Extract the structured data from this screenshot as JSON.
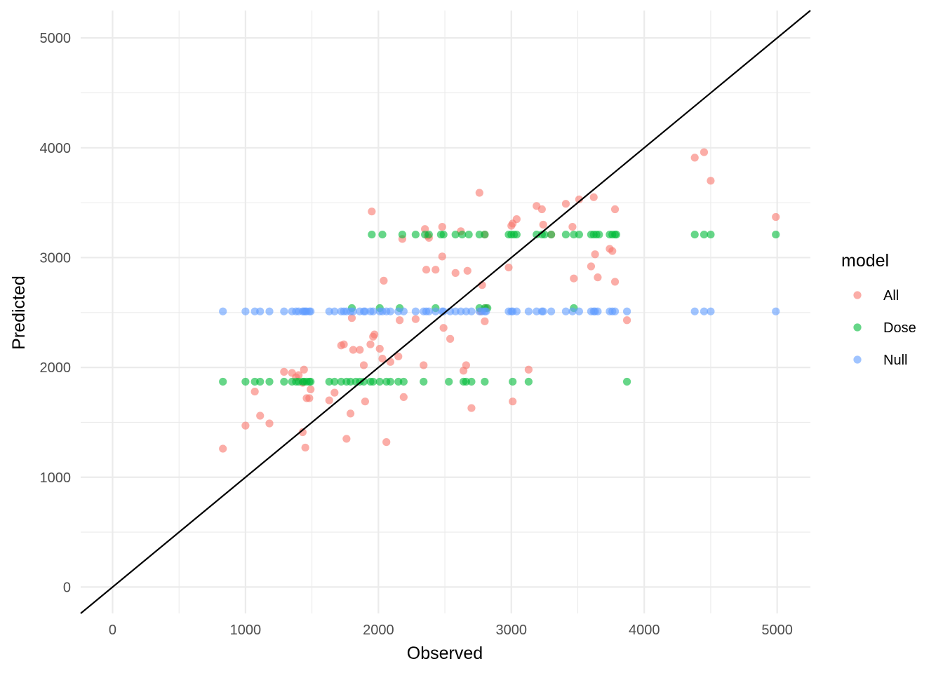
{
  "chart_data": {
    "type": "scatter",
    "xlabel": "Observed",
    "ylabel": "Predicted",
    "xlim": [
      -240,
      5250
    ],
    "ylim": [
      -240,
      5250
    ],
    "x_ticks": [
      0,
      1000,
      2000,
      3000,
      4000,
      5000
    ],
    "y_ticks": [
      0,
      1000,
      2000,
      3000,
      4000,
      5000
    ],
    "grid": true,
    "reference_line": {
      "slope": 1,
      "intercept": 0,
      "color": "#000000"
    },
    "legend": {
      "title": "model",
      "position": "right"
    },
    "series": [
      {
        "name": "All",
        "color": "#F8766D",
        "points": [
          [
            830,
            1260
          ],
          [
            1000,
            1470
          ],
          [
            1070,
            1780
          ],
          [
            1110,
            1560
          ],
          [
            1180,
            1490
          ],
          [
            1290,
            1960
          ],
          [
            1350,
            1950
          ],
          [
            1380,
            1910
          ],
          [
            1400,
            1930
          ],
          [
            1430,
            1860
          ],
          [
            1430,
            1410
          ],
          [
            1440,
            1980
          ],
          [
            1450,
            1270
          ],
          [
            1460,
            1720
          ],
          [
            1480,
            1720
          ],
          [
            1490,
            1800
          ],
          [
            1630,
            1700
          ],
          [
            1670,
            1770
          ],
          [
            1720,
            2200
          ],
          [
            1740,
            2210
          ],
          [
            1760,
            1350
          ],
          [
            1790,
            1580
          ],
          [
            1800,
            2450
          ],
          [
            1810,
            2160
          ],
          [
            1860,
            2160
          ],
          [
            1890,
            2020
          ],
          [
            1900,
            1690
          ],
          [
            1940,
            2210
          ],
          [
            1950,
            3420
          ],
          [
            1960,
            2280
          ],
          [
            1970,
            2300
          ],
          [
            2010,
            2170
          ],
          [
            2030,
            2080
          ],
          [
            2040,
            2790
          ],
          [
            2060,
            1320
          ],
          [
            2090,
            2050
          ],
          [
            2150,
            2100
          ],
          [
            2160,
            2430
          ],
          [
            2180,
            3170
          ],
          [
            2190,
            1730
          ],
          [
            2280,
            2440
          ],
          [
            2340,
            2020
          ],
          [
            2350,
            3260
          ],
          [
            2360,
            2890
          ],
          [
            2370,
            3200
          ],
          [
            2380,
            3180
          ],
          [
            2430,
            2890
          ],
          [
            2480,
            3280
          ],
          [
            2480,
            3010
          ],
          [
            2490,
            2360
          ],
          [
            2540,
            2260
          ],
          [
            2580,
            2860
          ],
          [
            2620,
            3240
          ],
          [
            2640,
            1970
          ],
          [
            2660,
            2020
          ],
          [
            2670,
            2880
          ],
          [
            2700,
            1630
          ],
          [
            2760,
            3590
          ],
          [
            2770,
            2510
          ],
          [
            2780,
            2750
          ],
          [
            2800,
            3210
          ],
          [
            2800,
            2420
          ],
          [
            2810,
            2540
          ],
          [
            2980,
            2910
          ],
          [
            3000,
            3290
          ],
          [
            3010,
            3310
          ],
          [
            3010,
            1690
          ],
          [
            3040,
            3350
          ],
          [
            3130,
            1980
          ],
          [
            3190,
            3470
          ],
          [
            3230,
            3440
          ],
          [
            3240,
            3300
          ],
          [
            3300,
            3210
          ],
          [
            3410,
            3490
          ],
          [
            3460,
            3280
          ],
          [
            3470,
            2810
          ],
          [
            3510,
            3530
          ],
          [
            3600,
            2920
          ],
          [
            3620,
            3550
          ],
          [
            3630,
            3030
          ],
          [
            3650,
            2820
          ],
          [
            3740,
            3080
          ],
          [
            3760,
            3060
          ],
          [
            3780,
            3440
          ],
          [
            3780,
            2780
          ],
          [
            3870,
            2430
          ],
          [
            4380,
            3910
          ],
          [
            4450,
            3960
          ],
          [
            4500,
            3700
          ],
          [
            4990,
            3370
          ]
        ]
      },
      {
        "name": "Dose",
        "color": "#00BA38",
        "points": [
          [
            830,
            1870
          ],
          [
            1000,
            1870
          ],
          [
            1070,
            1870
          ],
          [
            1110,
            1870
          ],
          [
            1180,
            1870
          ],
          [
            1290,
            1870
          ],
          [
            1350,
            1870
          ],
          [
            1380,
            1870
          ],
          [
            1400,
            1870
          ],
          [
            1430,
            1870
          ],
          [
            1440,
            1870
          ],
          [
            1460,
            1870
          ],
          [
            1480,
            1870
          ],
          [
            1490,
            1870
          ],
          [
            1630,
            1870
          ],
          [
            1670,
            1870
          ],
          [
            1720,
            1870
          ],
          [
            1760,
            1870
          ],
          [
            1790,
            1870
          ],
          [
            1830,
            1870
          ],
          [
            1860,
            1870
          ],
          [
            1890,
            1870
          ],
          [
            1940,
            1870
          ],
          [
            1960,
            1870
          ],
          [
            2010,
            1870
          ],
          [
            2060,
            1870
          ],
          [
            2090,
            1870
          ],
          [
            2150,
            1870
          ],
          [
            2190,
            1870
          ],
          [
            2340,
            1870
          ],
          [
            2530,
            1870
          ],
          [
            2640,
            1870
          ],
          [
            2660,
            1870
          ],
          [
            2700,
            1870
          ],
          [
            2800,
            1870
          ],
          [
            3010,
            1870
          ],
          [
            3130,
            1870
          ],
          [
            3870,
            1870
          ],
          [
            1800,
            2540
          ],
          [
            2010,
            2540
          ],
          [
            2160,
            2540
          ],
          [
            2430,
            2540
          ],
          [
            2760,
            2540
          ],
          [
            2800,
            2540
          ],
          [
            2820,
            2540
          ],
          [
            3470,
            2540
          ],
          [
            1950,
            3210
          ],
          [
            2030,
            3210
          ],
          [
            2180,
            3210
          ],
          [
            2280,
            3210
          ],
          [
            2350,
            3210
          ],
          [
            2380,
            3210
          ],
          [
            2470,
            3210
          ],
          [
            2490,
            3210
          ],
          [
            2580,
            3210
          ],
          [
            2630,
            3210
          ],
          [
            2680,
            3210
          ],
          [
            2760,
            3210
          ],
          [
            2800,
            3210
          ],
          [
            2980,
            3210
          ],
          [
            3000,
            3210
          ],
          [
            3020,
            3210
          ],
          [
            3040,
            3210
          ],
          [
            3190,
            3210
          ],
          [
            3230,
            3210
          ],
          [
            3250,
            3210
          ],
          [
            3300,
            3210
          ],
          [
            3410,
            3210
          ],
          [
            3470,
            3210
          ],
          [
            3510,
            3210
          ],
          [
            3600,
            3210
          ],
          [
            3620,
            3210
          ],
          [
            3640,
            3210
          ],
          [
            3660,
            3210
          ],
          [
            3740,
            3210
          ],
          [
            3760,
            3210
          ],
          [
            3780,
            3210
          ],
          [
            3790,
            3210
          ],
          [
            4380,
            3210
          ],
          [
            4450,
            3210
          ],
          [
            4500,
            3210
          ],
          [
            4990,
            3210
          ]
        ]
      },
      {
        "name": "Null",
        "color": "#619CFF",
        "points": [
          [
            830,
            2510
          ],
          [
            1000,
            2510
          ],
          [
            1070,
            2510
          ],
          [
            1110,
            2510
          ],
          [
            1180,
            2510
          ],
          [
            1290,
            2510
          ],
          [
            1350,
            2510
          ],
          [
            1380,
            2510
          ],
          [
            1400,
            2510
          ],
          [
            1430,
            2510
          ],
          [
            1440,
            2510
          ],
          [
            1450,
            2510
          ],
          [
            1460,
            2510
          ],
          [
            1480,
            2510
          ],
          [
            1490,
            2510
          ],
          [
            1630,
            2510
          ],
          [
            1670,
            2510
          ],
          [
            1720,
            2510
          ],
          [
            1740,
            2510
          ],
          [
            1760,
            2510
          ],
          [
            1790,
            2510
          ],
          [
            1810,
            2510
          ],
          [
            1860,
            2510
          ],
          [
            1890,
            2510
          ],
          [
            1900,
            2510
          ],
          [
            1940,
            2510
          ],
          [
            1960,
            2510
          ],
          [
            2010,
            2510
          ],
          [
            2030,
            2510
          ],
          [
            2060,
            2510
          ],
          [
            2090,
            2510
          ],
          [
            2150,
            2510
          ],
          [
            2190,
            2510
          ],
          [
            2280,
            2510
          ],
          [
            2340,
            2510
          ],
          [
            2360,
            2510
          ],
          [
            2380,
            2510
          ],
          [
            2430,
            2510
          ],
          [
            2480,
            2510
          ],
          [
            2490,
            2510
          ],
          [
            2540,
            2510
          ],
          [
            2580,
            2510
          ],
          [
            2620,
            2510
          ],
          [
            2660,
            2510
          ],
          [
            2700,
            2510
          ],
          [
            2760,
            2510
          ],
          [
            2780,
            2510
          ],
          [
            2800,
            2510
          ],
          [
            2810,
            2510
          ],
          [
            2980,
            2510
          ],
          [
            3000,
            2510
          ],
          [
            3010,
            2510
          ],
          [
            3040,
            2510
          ],
          [
            3130,
            2510
          ],
          [
            3190,
            2510
          ],
          [
            3230,
            2510
          ],
          [
            3240,
            2510
          ],
          [
            3300,
            2510
          ],
          [
            3410,
            2510
          ],
          [
            3460,
            2510
          ],
          [
            3510,
            2510
          ],
          [
            3600,
            2510
          ],
          [
            3620,
            2510
          ],
          [
            3630,
            2510
          ],
          [
            3650,
            2510
          ],
          [
            3740,
            2510
          ],
          [
            3760,
            2510
          ],
          [
            3780,
            2510
          ],
          [
            3870,
            2510
          ],
          [
            4380,
            2510
          ],
          [
            4450,
            2510
          ],
          [
            4500,
            2510
          ],
          [
            4990,
            2510
          ]
        ]
      }
    ]
  }
}
